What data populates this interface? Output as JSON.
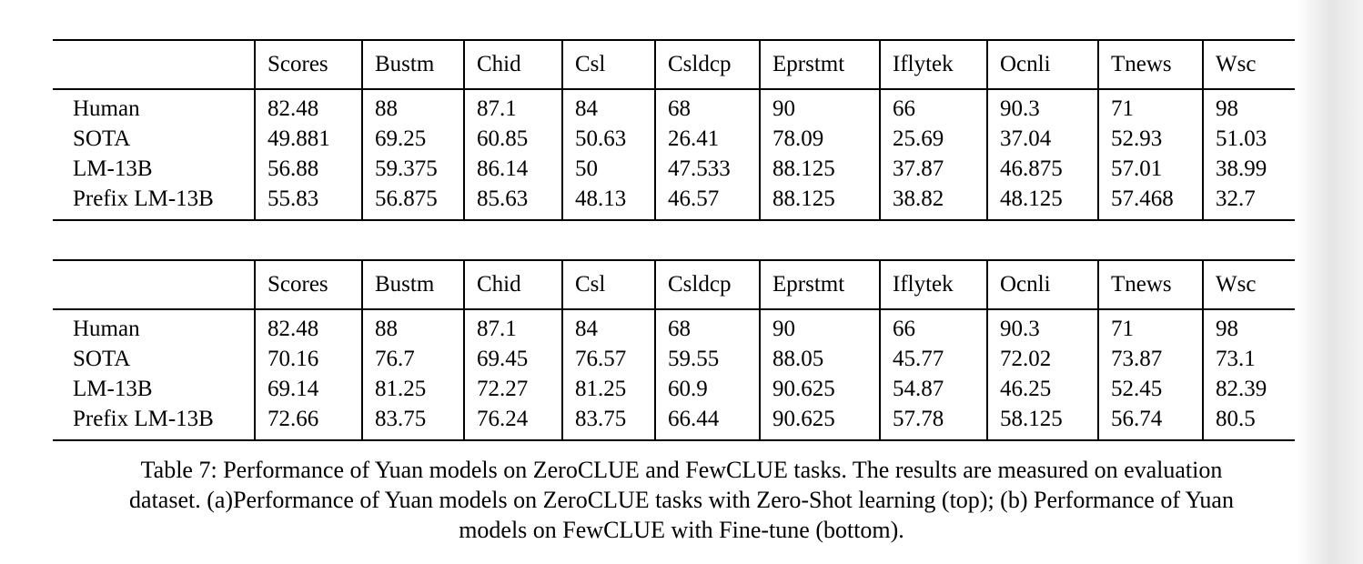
{
  "tables": [
    {
      "id": "zeroclue-zero-shot",
      "columns": [
        "",
        "Scores",
        "Bustm",
        "Chid",
        "Csl",
        "Csldcp",
        "Eprstmt",
        "Iflytek",
        "Ocnli",
        "Tnews",
        "Wsc"
      ],
      "rows": [
        {
          "label": "Human",
          "values": [
            "82.48",
            "88",
            "87.1",
            "84",
            "68",
            "90",
            "66",
            "90.3",
            "71",
            "98"
          ]
        },
        {
          "label": "SOTA",
          "values": [
            "49.881",
            "69.25",
            "60.85",
            "50.63",
            "26.41",
            "78.09",
            "25.69",
            "37.04",
            "52.93",
            "51.03"
          ]
        },
        {
          "label": "LM-13B",
          "values": [
            "56.88",
            "59.375",
            "86.14",
            "50",
            "47.533",
            "88.125",
            "37.87",
            "46.875",
            "57.01",
            "38.99"
          ]
        },
        {
          "label": "Prefix LM-13B",
          "values": [
            "55.83",
            "56.875",
            "85.63",
            "48.13",
            "46.57",
            "88.125",
            "38.82",
            "48.125",
            "57.468",
            "32.7"
          ]
        }
      ]
    },
    {
      "id": "fewclue-fine-tune",
      "columns": [
        "",
        "Scores",
        "Bustm",
        "Chid",
        "Csl",
        "Csldcp",
        "Eprstmt",
        "Iflytek",
        "Ocnli",
        "Tnews",
        "Wsc"
      ],
      "rows": [
        {
          "label": "Human",
          "values": [
            "82.48",
            "88",
            "87.1",
            "84",
            "68",
            "90",
            "66",
            "90.3",
            "71",
            "98"
          ]
        },
        {
          "label": "SOTA",
          "values": [
            "70.16",
            "76.7",
            "69.45",
            "76.57",
            "59.55",
            "88.05",
            "45.77",
            "72.02",
            "73.87",
            "73.1"
          ]
        },
        {
          "label": "LM-13B",
          "values": [
            "69.14",
            "81.25",
            "72.27",
            "81.25",
            "60.9",
            "90.625",
            "54.87",
            "46.25",
            "52.45",
            "82.39"
          ]
        },
        {
          "label": "Prefix LM-13B",
          "values": [
            "72.66",
            "83.75",
            "76.24",
            "83.75",
            "66.44",
            "90.625",
            "57.78",
            "58.125",
            "56.74",
            "80.5"
          ]
        }
      ]
    }
  ],
  "caption": {
    "lines": [
      "Table 7: Performance of Yuan models on ZeroCLUE and FewCLUE tasks. The results are measured on evaluation",
      "dataset. (a)Performance of Yuan models on ZeroCLUE tasks with Zero-Shot learning (top); (b) Performance of Yuan",
      "models on FewCLUE with Fine-tune (bottom)."
    ],
    "text": "Table 7: Performance of Yuan models on ZeroCLUE and FewCLUE tasks. The results are measured on evaluation dataset. (a)Performance of Yuan models on ZeroCLUE tasks with Zero-Shot learning (top); (b) Performance of Yuan models on FewCLUE with Fine-tune (bottom)."
  },
  "colors": {
    "text": "#000000",
    "background": "#ffffff",
    "rule": "#000000",
    "edge_shadow": "#d0d0d0"
  }
}
